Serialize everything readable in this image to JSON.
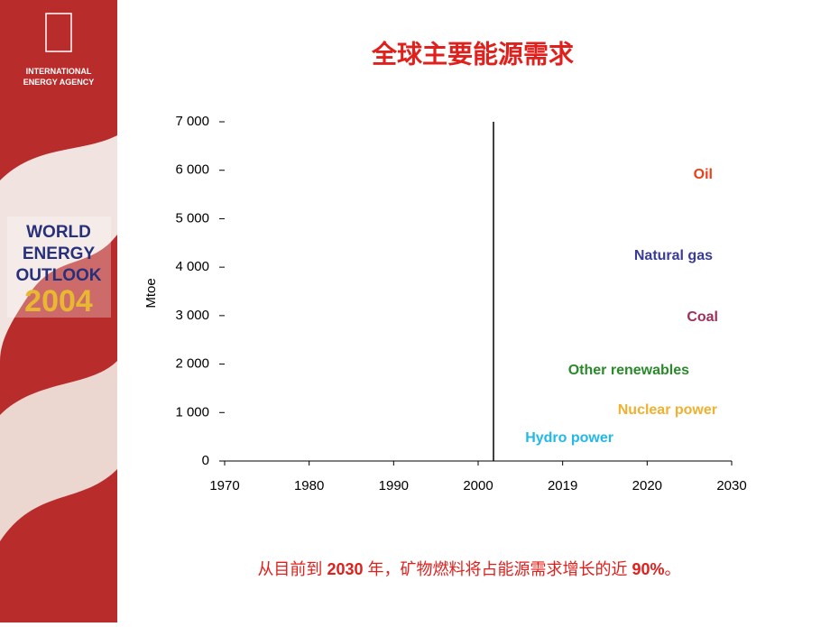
{
  "sidebar": {
    "agency": [
      "INTERNATIONAL",
      "ENERGY AGENCY"
    ],
    "outlook": [
      "WORLD",
      "ENERGY",
      "OUTLOOK",
      "2004"
    ]
  },
  "chart_data": {
    "type": "line",
    "title": "全球主要能源需求",
    "y_label": "Mtoe",
    "x_tick_labels": [
      "1970",
      "1980",
      "1990",
      "2000",
      "2019",
      "2020",
      "2030"
    ],
    "ylim": [
      0,
      7000
    ],
    "yticks": [
      {
        "value": 0,
        "label": "0"
      },
      {
        "value": 1000,
        "label": "1 000"
      },
      {
        "value": 2000,
        "label": "2 000"
      },
      {
        "value": 3000,
        "label": "3 000"
      },
      {
        "value": 4000,
        "label": "4 000"
      },
      {
        "value": 5000,
        "label": "5 000"
      },
      {
        "value": 6000,
        "label": "6 000"
      },
      {
        "value": 7000,
        "label": "7 000"
      }
    ],
    "annotations": [
      {
        "text": "Oil",
        "color": "#e8401c"
      },
      {
        "text": "Natural gas",
        "color": "#3a3a98"
      },
      {
        "text": "Coal",
        "color": "#9e2f5c"
      },
      {
        "text": "Other renewables",
        "color": "#2a8a2a"
      },
      {
        "text": "Nuclear power",
        "color": "#f0b030"
      },
      {
        "text": "Hydro power",
        "color": "#22b8e8"
      }
    ]
  },
  "footnote": [
    "从目前到 ",
    "2030",
    " 年，矿物燃料将占能源需求增长的近 ",
    "90%",
    "。"
  ]
}
